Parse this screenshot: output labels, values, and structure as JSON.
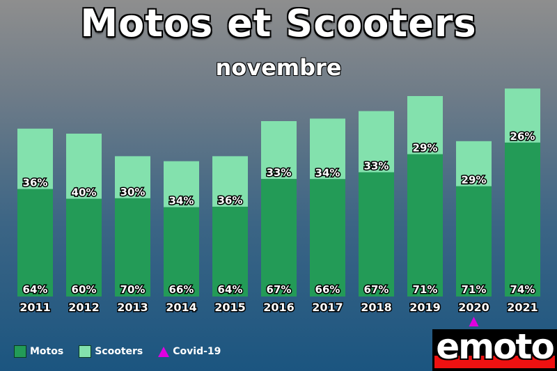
{
  "title": "Motos et Scooters",
  "subtitle": "novembre",
  "colors": {
    "motos": "#239b57",
    "scooters": "#83e1ad",
    "covid": "#e000e0"
  },
  "legend": {
    "motos": "Motos",
    "scooters": "Scooters",
    "covid": "Covid-19"
  },
  "logo": {
    "text": "emoto"
  },
  "chart_data": {
    "type": "bar",
    "stacked": true,
    "categories": [
      "2011",
      "2012",
      "2013",
      "2014",
      "2015",
      "2016",
      "2017",
      "2018",
      "2019",
      "2020",
      "2021"
    ],
    "series": [
      {
        "name": "Motos",
        "values": [
          64,
          60,
          70,
          66,
          64,
          67,
          66,
          67,
          71,
          71,
          74
        ]
      },
      {
        "name": "Scooters",
        "values": [
          36,
          40,
          30,
          34,
          36,
          33,
          34,
          33,
          29,
          29,
          26
        ]
      }
    ],
    "totals_relative": [
      0.67,
      0.65,
      0.56,
      0.54,
      0.56,
      0.7,
      0.71,
      0.74,
      0.8,
      0.62,
      0.83
    ],
    "unit": "%",
    "marker": {
      "category": "2020",
      "label": "Covid-19"
    },
    "legend": "bottom-left",
    "grid": false
  }
}
